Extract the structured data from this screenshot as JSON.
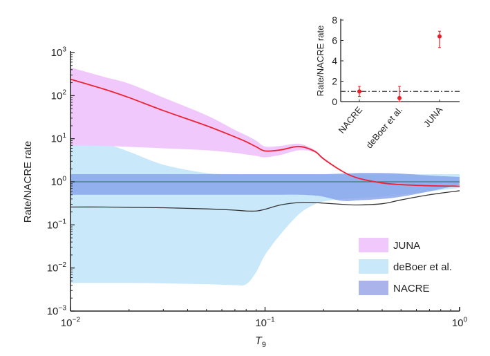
{
  "chart_data": [
    {
      "type": "area",
      "title": "",
      "xlabel": "T",
      "xlabel_sub": "9",
      "ylabel": "Rate/NACRE rate",
      "xscale": "log",
      "yscale": "log",
      "xlim": [
        0.01,
        1
      ],
      "ylim": [
        0.001,
        1000
      ],
      "xticks": [
        "10^−2",
        "10^−1",
        "10^0"
      ],
      "xtick_values": [
        0.01,
        0.1,
        1
      ],
      "yticks": [
        "10^−3",
        "10^−2",
        "10^−1",
        "10^0",
        "10^1",
        "10^2",
        "10^3"
      ],
      "ytick_values": [
        0.001,
        0.01,
        0.1,
        1,
        10,
        100,
        1000
      ],
      "legend_position": "bottom-right",
      "x": [
        0.01,
        0.015,
        0.02,
        0.03,
        0.05,
        0.07,
        0.08,
        0.09,
        0.1,
        0.12,
        0.15,
        0.18,
        0.2,
        0.25,
        0.3,
        0.4,
        0.5,
        0.7,
        1.0
      ],
      "series": [
        {
          "name": "deBoer et al.",
          "color": "#c9e9fb",
          "upper": [
            15,
            8,
            5,
            2.5,
            1.6,
            1.5,
            1.5,
            1.5,
            1.5,
            1.5,
            1.5,
            1.5,
            1.5,
            1.5,
            1.5,
            1.5,
            1.5,
            1.5,
            1.5
          ],
          "lower": [
            0.0045,
            0.0045,
            0.0045,
            0.0044,
            0.0042,
            0.004,
            0.0042,
            0.008,
            0.02,
            0.06,
            0.18,
            0.3,
            0.35,
            0.4,
            0.42,
            0.45,
            0.5,
            0.6,
            0.72
          ],
          "central": [
            0.26,
            0.26,
            0.255,
            0.25,
            0.235,
            0.22,
            0.21,
            0.21,
            0.23,
            0.29,
            0.33,
            0.33,
            0.32,
            0.3,
            0.29,
            0.31,
            0.38,
            0.5,
            0.62
          ],
          "central_color": "#333333"
        },
        {
          "name": "NACRE",
          "color": "#7f9ce8",
          "upper": [
            1.5,
            1.5,
            1.5,
            1.5,
            1.5,
            1.5,
            1.5,
            1.5,
            1.5,
            1.5,
            1.5,
            1.5,
            1.5,
            1.55,
            1.6,
            1.6,
            1.55,
            1.4,
            1.3
          ],
          "lower": [
            0.5,
            0.5,
            0.5,
            0.5,
            0.5,
            0.5,
            0.5,
            0.5,
            0.5,
            0.5,
            0.5,
            0.48,
            0.45,
            0.36,
            0.37,
            0.4,
            0.45,
            0.6,
            0.85
          ],
          "central": [
            1,
            1,
            1,
            1,
            1,
            1,
            1,
            1,
            1,
            1,
            1,
            1,
            1,
            1,
            1,
            1,
            1,
            1,
            1
          ],
          "central_color": "#3a7a6a"
        },
        {
          "name": "JUNA",
          "color": "#f0c8fb",
          "upper": [
            450,
            270,
            190,
            90,
            35,
            16,
            12,
            9,
            6.6,
            6.8,
            7.6,
            5.5,
            3.6,
            1.8,
            1.25,
            0.95,
            0.87,
            0.82,
            0.8
          ],
          "lower": [
            7,
            6.8,
            6.5,
            6,
            5.4,
            4.7,
            4.3,
            4,
            3.7,
            4.2,
            5.4,
            4.8,
            3.2,
            1.7,
            1.2,
            0.93,
            0.85,
            0.8,
            0.78
          ],
          "central": [
            240,
            140,
            90,
            45,
            20,
            11,
            8.5,
            6.5,
            5.2,
            5.5,
            6.6,
            5.1,
            3.4,
            1.75,
            1.22,
            0.94,
            0.86,
            0.81,
            0.79
          ],
          "central_color": "#ee2233"
        }
      ]
    },
    {
      "type": "scatter",
      "title": "",
      "ylabel": "Rate/NACRE rate",
      "ylim": [
        0,
        8
      ],
      "yticks": [
        "0",
        "2",
        "4",
        "6",
        "8"
      ],
      "ytick_values": [
        0,
        2,
        4,
        6,
        8
      ],
      "categories": [
        "NACRE",
        "deBoer et al.",
        "JUNA"
      ],
      "values": [
        1.0,
        0.35,
        6.4
      ],
      "err_low": [
        0.5,
        0.0,
        5.3
      ],
      "err_high": [
        1.5,
        1.5,
        6.9
      ],
      "reference_line": 1,
      "color": "#ee1c24"
    }
  ]
}
